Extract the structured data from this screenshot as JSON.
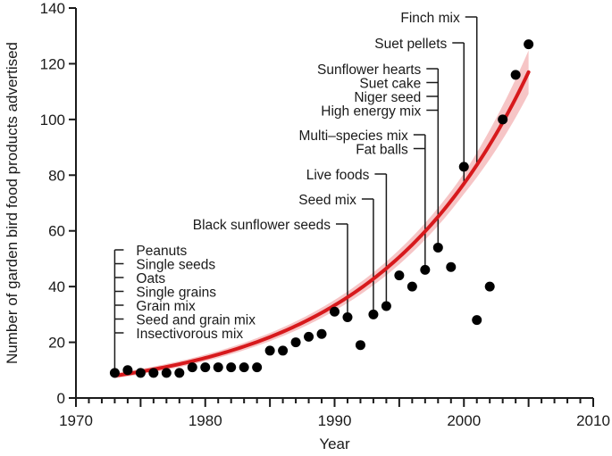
{
  "chart_data": {
    "type": "scatter",
    "title": "",
    "xlabel": "Year",
    "ylabel": "Number of garden bird food products advertised",
    "xlim": [
      1970,
      2010
    ],
    "ylim": [
      0,
      140
    ],
    "x_ticks": [
      1970,
      1980,
      1990,
      2000,
      2010
    ],
    "x_minor_step": 1,
    "y_ticks": [
      0,
      20,
      40,
      60,
      80,
      100,
      120,
      140
    ],
    "grid": false,
    "series": [
      {
        "name": "Products advertised",
        "kind": "points",
        "color": "#000000",
        "x": [
          1973,
          1974,
          1975,
          1976,
          1977,
          1978,
          1979,
          1980,
          1981,
          1982,
          1983,
          1984,
          1985,
          1986,
          1987,
          1988,
          1989,
          1990,
          1991,
          1992,
          1993,
          1994,
          1995,
          1996,
          1997,
          1998,
          1999,
          2000,
          2001,
          2002,
          2003,
          2004,
          2005
        ],
        "y": [
          9,
          10,
          9,
          9,
          9,
          9,
          11,
          11,
          11,
          11,
          11,
          11,
          17,
          17,
          20,
          22,
          23,
          31,
          29,
          19,
          30,
          33,
          44,
          40,
          46,
          54,
          47,
          83,
          28,
          40,
          100,
          116,
          127
        ]
      },
      {
        "name": "Exponential fit",
        "kind": "line",
        "color": "#d7191c",
        "band_color": "#f4b6b8",
        "model": "exponential",
        "x_range": [
          1973,
          2005
        ],
        "y_start": 8,
        "y_end": 117
      }
    ],
    "annotations": [
      {
        "year": 1973,
        "side": "right",
        "labels": [
          "Peanuts",
          "Single seeds",
          "Oats",
          "Single grains",
          "Grain mix",
          "Seed and grain mix",
          "Insectivorous mix"
        ]
      },
      {
        "year": 1991,
        "side": "left",
        "labels": [
          "Black sunflower seeds"
        ]
      },
      {
        "year": 1993,
        "side": "left",
        "labels": [
          "Seed mix"
        ]
      },
      {
        "year": 1994,
        "side": "left",
        "labels": [
          "Live foods"
        ]
      },
      {
        "year": 1997,
        "side": "left",
        "labels": [
          "Multi–species mix",
          "Fat balls"
        ]
      },
      {
        "year": 1998,
        "side": "left",
        "labels": [
          "Sunflower hearts",
          "Suet cake",
          "Niger seed",
          "High energy mix"
        ]
      },
      {
        "year": 2000,
        "side": "left",
        "labels": [
          "Suet pellets"
        ]
      },
      {
        "year": 2001,
        "side": "left",
        "labels": [
          "Finch mix"
        ]
      }
    ]
  }
}
